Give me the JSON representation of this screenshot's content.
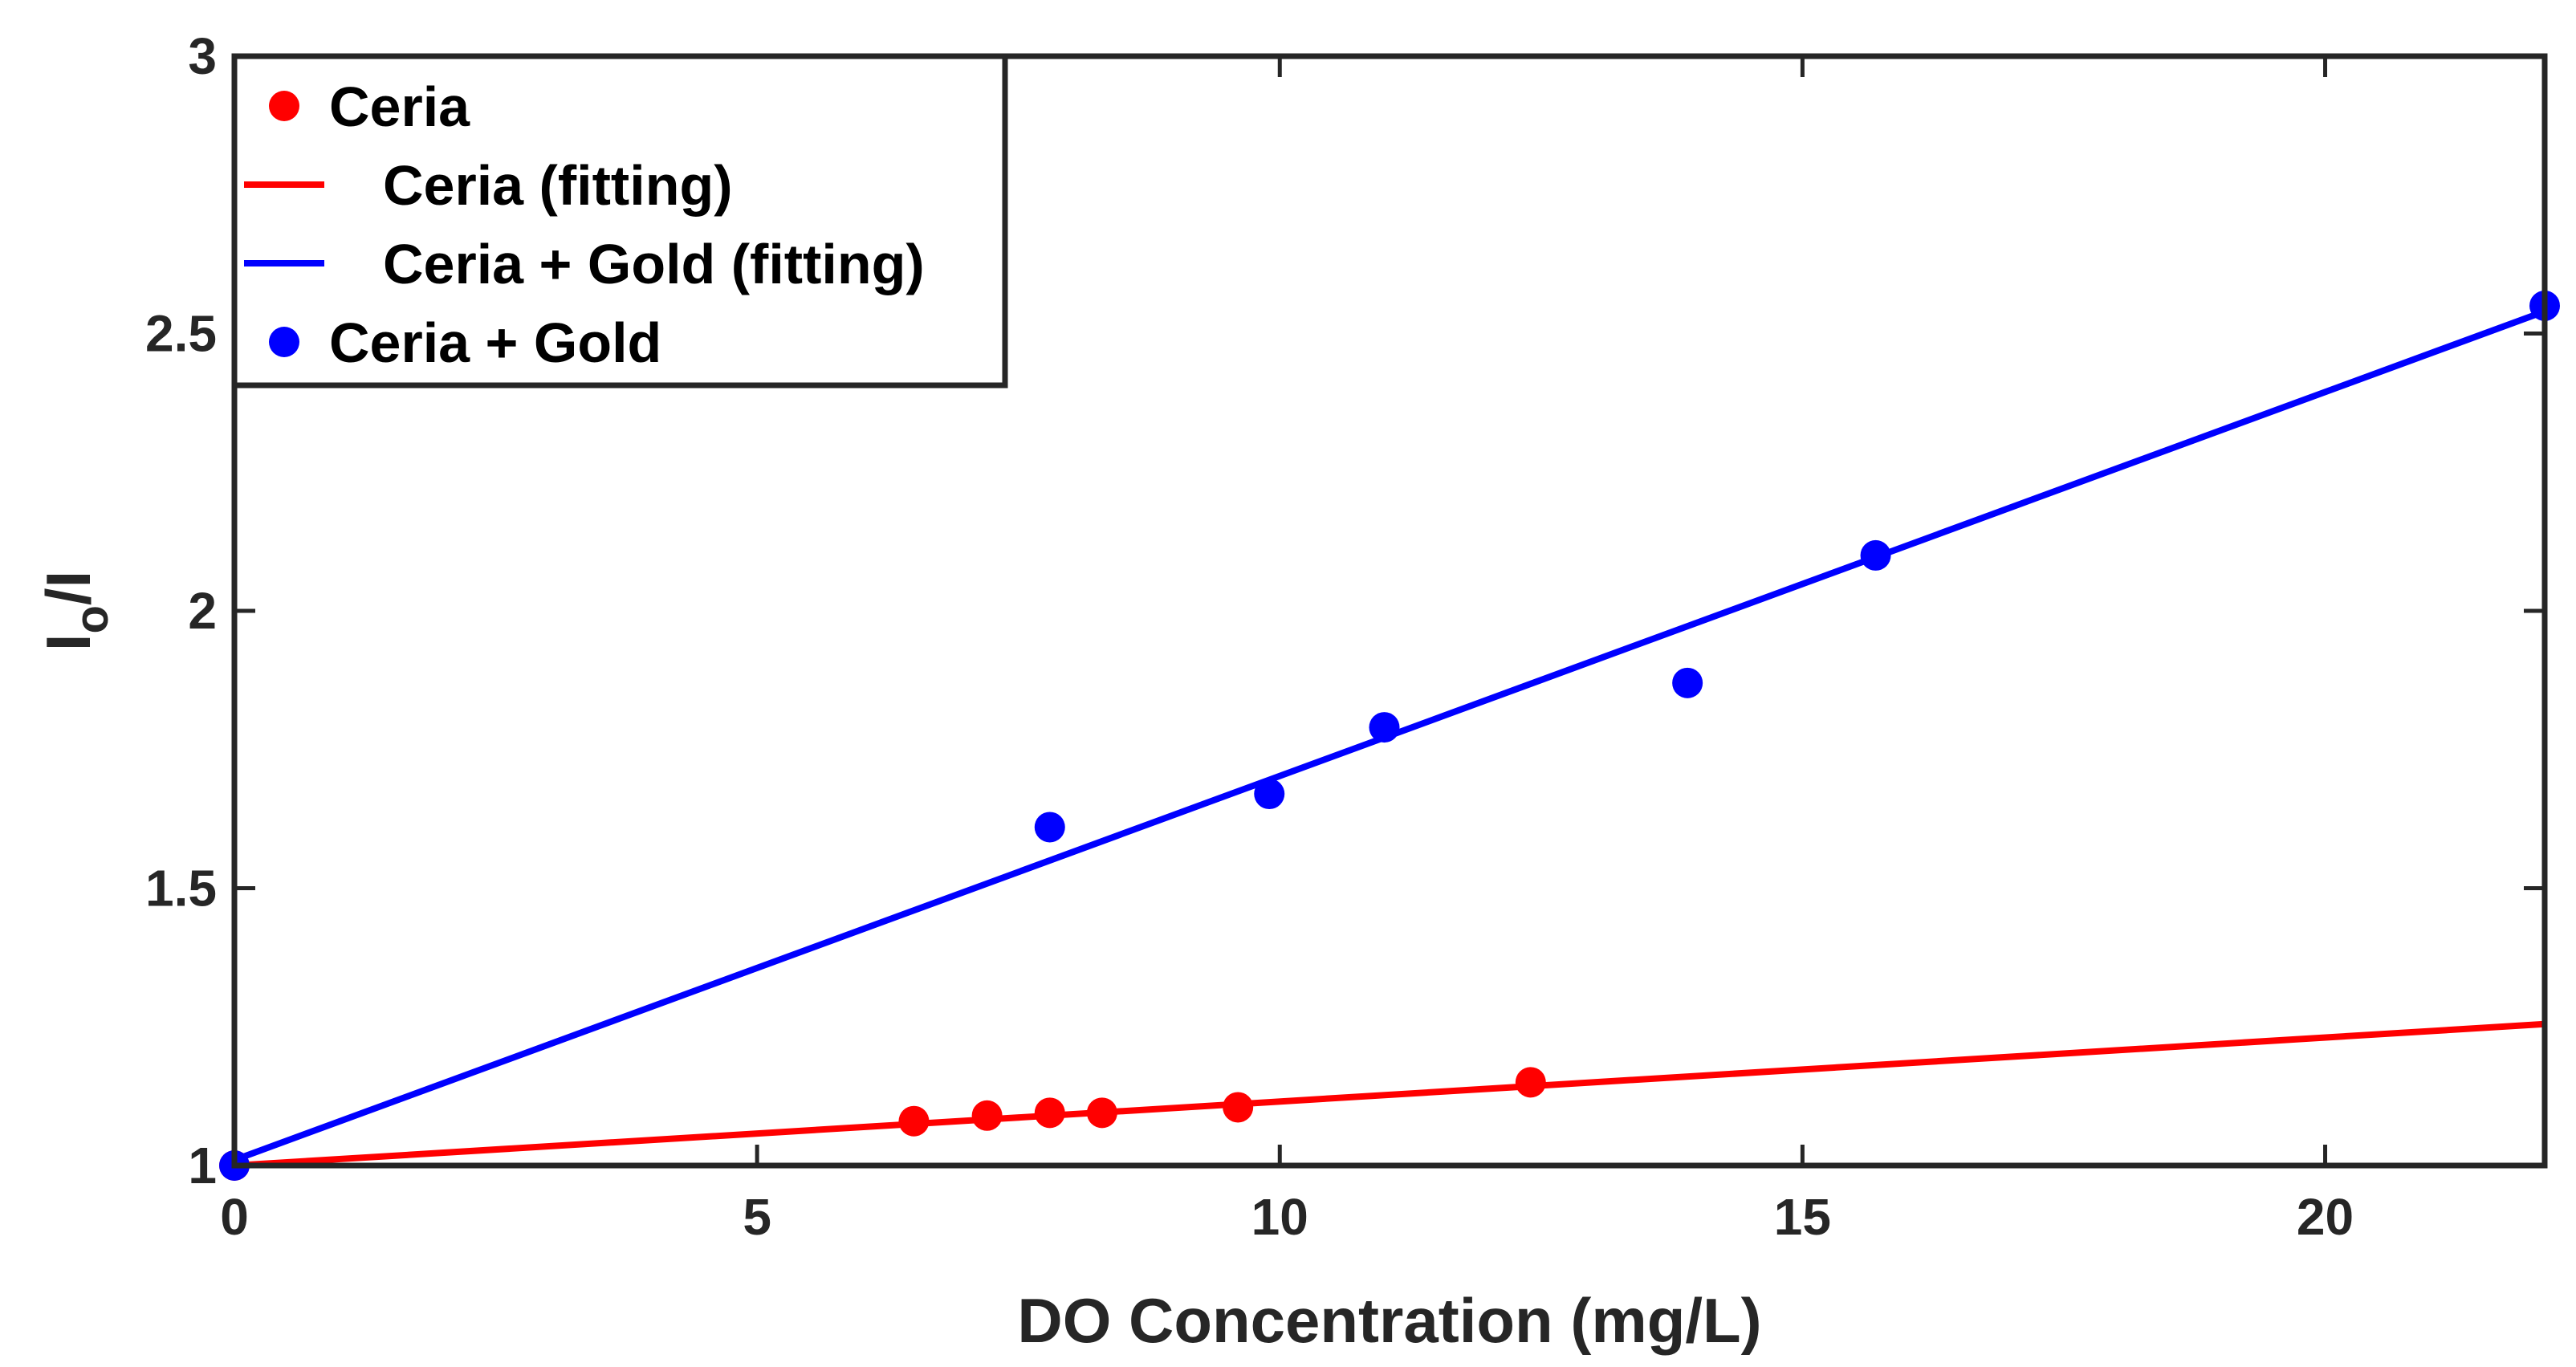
{
  "chart_data": {
    "type": "scatter",
    "title": "",
    "xlabel": "DO Concentration (mg/L)",
    "ylabel": {
      "main": "I",
      "sub": "o",
      "rest": "/I"
    },
    "xlim": [
      0,
      22.1
    ],
    "ylim": [
      1,
      3
    ],
    "xticks": [
      0,
      5,
      10,
      15,
      20
    ],
    "xtick_labels": [
      "0",
      "5",
      "10",
      "15",
      "20"
    ],
    "yticks": [
      1,
      1.5,
      2,
      2.5,
      3
    ],
    "ytick_labels": [
      "1",
      "1.5",
      "2",
      "2.5",
      "3"
    ],
    "grid": false,
    "legend_position": "top-left",
    "series": [
      {
        "name": "Ceria",
        "kind": "markers",
        "color": "#ff0000",
        "x": [
          0,
          6.5,
          7.2,
          7.8,
          8.3,
          9.6,
          12.4
        ],
        "y": [
          1.0,
          1.08,
          1.09,
          1.095,
          1.095,
          1.105,
          1.15
        ]
      },
      {
        "name": "Ceria (fitting)",
        "kind": "line",
        "color": "#ff0000",
        "x": [
          0,
          22.1
        ],
        "y": [
          1.0,
          1.255
        ]
      },
      {
        "name": "Ceria + Gold (fitting)",
        "kind": "line",
        "color": "#0000ff",
        "x": [
          0,
          22.1
        ],
        "y": [
          1.01,
          2.54
        ]
      },
      {
        "name": "Ceria + Gold",
        "kind": "markers",
        "color": "#0000ff",
        "x": [
          0,
          7.8,
          9.9,
          11.0,
          13.9,
          15.7,
          22.1
        ],
        "y": [
          1.0,
          1.61,
          1.67,
          1.79,
          1.87,
          2.1,
          2.55
        ]
      }
    ]
  }
}
